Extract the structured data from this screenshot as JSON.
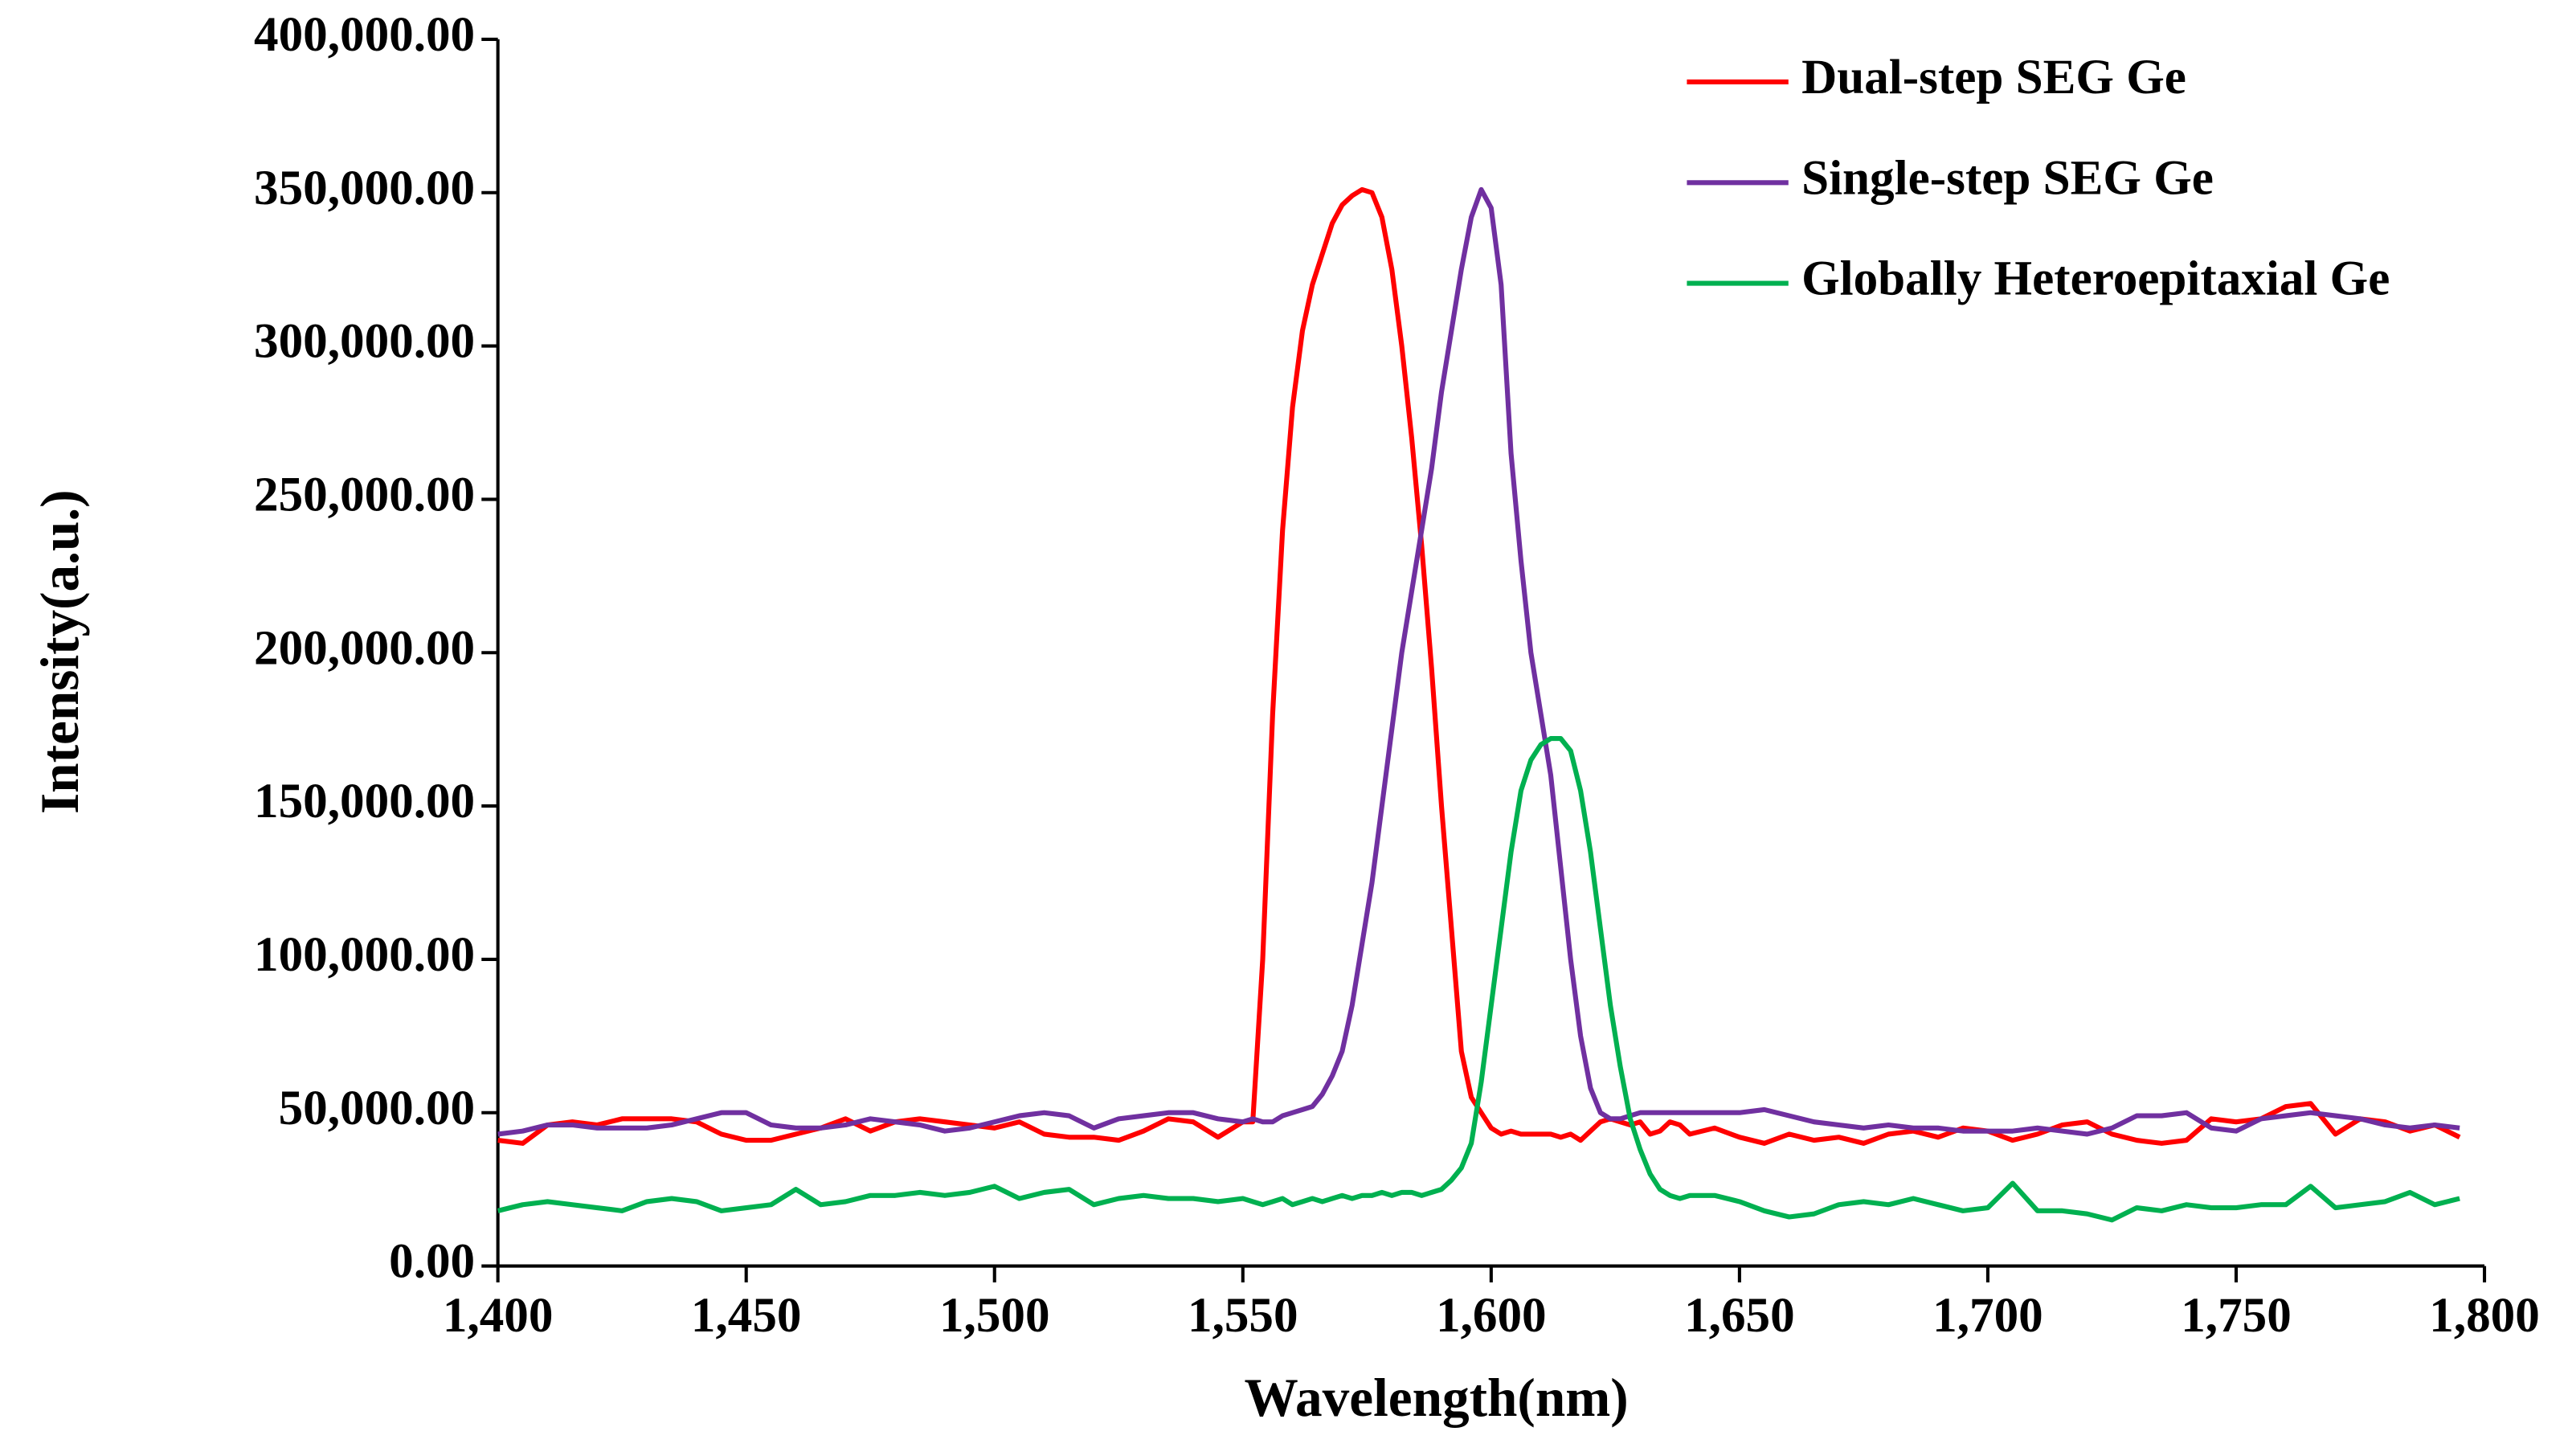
{
  "chart_data": {
    "type": "line",
    "x_label": "Wavelength(nm)",
    "y_label": "Intensity(a.u.)",
    "x": [
      1400,
      1405,
      1410,
      1415,
      1420,
      1425,
      1430,
      1435,
      1440,
      1445,
      1450,
      1455,
      1460,
      1465,
      1470,
      1475,
      1480,
      1485,
      1490,
      1495,
      1500,
      1505,
      1510,
      1515,
      1520,
      1525,
      1530,
      1535,
      1540,
      1545,
      1550,
      1552,
      1554,
      1556,
      1558,
      1560,
      1562,
      1564,
      1566,
      1568,
      1570,
      1572,
      1574,
      1576,
      1578,
      1580,
      1582,
      1584,
      1586,
      1588,
      1590,
      1592,
      1594,
      1596,
      1598,
      1600,
      1602,
      1604,
      1606,
      1608,
      1610,
      1612,
      1614,
      1616,
      1618,
      1620,
      1622,
      1624,
      1626,
      1628,
      1630,
      1632,
      1634,
      1636,
      1638,
      1640,
      1645,
      1650,
      1655,
      1660,
      1665,
      1670,
      1675,
      1680,
      1685,
      1690,
      1695,
      1700,
      1705,
      1710,
      1715,
      1720,
      1725,
      1730,
      1735,
      1740,
      1745,
      1750,
      1755,
      1760,
      1765,
      1770,
      1775,
      1780,
      1785,
      1790,
      1795
    ],
    "series": [
      {
        "name": "Dual-step SEG Ge",
        "color": "#ff0000",
        "values": [
          41000,
          40000,
          46000,
          47000,
          46000,
          48000,
          48000,
          48000,
          47000,
          43000,
          41000,
          41000,
          43000,
          45000,
          48000,
          44000,
          47000,
          48000,
          47000,
          46000,
          45000,
          47000,
          43000,
          42000,
          42000,
          41000,
          44000,
          48000,
          47000,
          42000,
          47000,
          47000,
          100000,
          180000,
          240000,
          280000,
          305000,
          320000,
          330000,
          340000,
          346000,
          349000,
          351000,
          350000,
          342000,
          325000,
          300000,
          270000,
          235000,
          195000,
          150000,
          110000,
          70000,
          55000,
          50000,
          45000,
          43000,
          44000,
          43000,
          43000,
          43000,
          43000,
          42000,
          43000,
          41000,
          44000,
          47000,
          48000,
          47000,
          46000,
          47000,
          43000,
          44000,
          47000,
          46000,
          43000,
          45000,
          42000,
          40000,
          43000,
          41000,
          42000,
          40000,
          43000,
          44000,
          42000,
          45000,
          44000,
          41000,
          43000,
          46000,
          47000,
          43000,
          41000,
          40000,
          41000,
          48000,
          47000,
          48000,
          52000,
          53000,
          43000,
          48000,
          47000,
          44000,
          46000,
          42000
        ]
      },
      {
        "name": "Single-step SEG Ge",
        "color": "#7030a0",
        "values": [
          43000,
          44000,
          46000,
          46000,
          45000,
          45000,
          45000,
          46000,
          48000,
          50000,
          50000,
          46000,
          45000,
          45000,
          46000,
          48000,
          47000,
          46000,
          44000,
          45000,
          47000,
          49000,
          50000,
          49000,
          45000,
          48000,
          49000,
          50000,
          50000,
          48000,
          47000,
          48000,
          47000,
          47000,
          49000,
          50000,
          51000,
          52000,
          56000,
          62000,
          70000,
          85000,
          105000,
          125000,
          150000,
          175000,
          200000,
          220000,
          240000,
          260000,
          285000,
          305000,
          325000,
          342000,
          351000,
          345000,
          320000,
          265000,
          230000,
          200000,
          180000,
          160000,
          130000,
          100000,
          75000,
          58000,
          50000,
          48000,
          48000,
          49000,
          50000,
          50000,
          50000,
          50000,
          50000,
          50000,
          50000,
          50000,
          51000,
          49000,
          47000,
          46000,
          45000,
          46000,
          45000,
          45000,
          44000,
          44000,
          44000,
          45000,
          44000,
          43000,
          45000,
          49000,
          49000,
          50000,
          45000,
          44000,
          48000,
          49000,
          50000,
          49000,
          48000,
          46000,
          45000,
          46000,
          45000
        ]
      },
      {
        "name": "Globally Heteroepitaxial Ge",
        "color": "#00b050",
        "values": [
          18000,
          20000,
          21000,
          20000,
          19000,
          18000,
          21000,
          22000,
          21000,
          18000,
          19000,
          20000,
          25000,
          20000,
          21000,
          23000,
          23000,
          24000,
          23000,
          24000,
          26000,
          22000,
          24000,
          25000,
          20000,
          22000,
          23000,
          22000,
          22000,
          21000,
          22000,
          21000,
          20000,
          21000,
          22000,
          20000,
          21000,
          22000,
          21000,
          22000,
          23000,
          22000,
          23000,
          23000,
          24000,
          23000,
          24000,
          24000,
          23000,
          24000,
          25000,
          28000,
          32000,
          40000,
          60000,
          85000,
          110000,
          135000,
          155000,
          165000,
          170000,
          172000,
          172000,
          168000,
          155000,
          135000,
          110000,
          85000,
          65000,
          48000,
          38000,
          30000,
          25000,
          23000,
          22000,
          23000,
          23000,
          21000,
          18000,
          16000,
          17000,
          20000,
          21000,
          20000,
          22000,
          20000,
          18000,
          19000,
          27000,
          18000,
          18000,
          17000,
          15000,
          19000,
          18000,
          20000,
          19000,
          19000,
          20000,
          20000,
          26000,
          19000,
          20000,
          21000,
          24000,
          20000,
          22000
        ]
      }
    ],
    "xlim": [
      1400,
      1800
    ],
    "xticks": [
      {
        "value": 1400,
        "label": "1,400"
      },
      {
        "value": 1450,
        "label": "1,450"
      },
      {
        "value": 1500,
        "label": "1,500"
      },
      {
        "value": 1550,
        "label": "1,550"
      },
      {
        "value": 1600,
        "label": "1,600"
      },
      {
        "value": 1650,
        "label": "1,650"
      },
      {
        "value": 1700,
        "label": "1,700"
      },
      {
        "value": 1750,
        "label": "1,750"
      },
      {
        "value": 1800,
        "label": "1,800"
      }
    ],
    "ylim": [
      0,
      400000
    ],
    "yticks": [
      {
        "value": 0,
        "label": "0.00"
      },
      {
        "value": 50000,
        "label": "50,000.00"
      },
      {
        "value": 100000,
        "label": "100,000.00"
      },
      {
        "value": 150000,
        "label": "150,000.00"
      },
      {
        "value": 200000,
        "label": "200,000.00"
      },
      {
        "value": 250000,
        "label": "250,000.00"
      },
      {
        "value": 300000,
        "label": "300,000.00"
      },
      {
        "value": 350000,
        "label": "350,000.00"
      },
      {
        "value": 400000,
        "label": "400,000.00"
      }
    ],
    "grid": false,
    "legend": "top-right"
  }
}
